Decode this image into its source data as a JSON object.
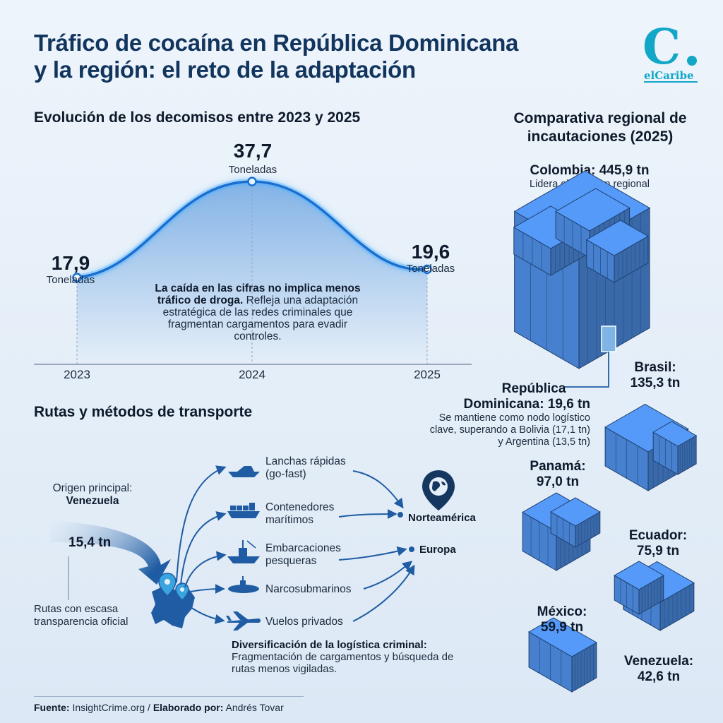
{
  "header": {
    "title_line1": "Tráfico de cocaína en República Dominicana",
    "title_line2": "y la región: el reto de la adaptación"
  },
  "logo": {
    "mark": "C",
    "text": "elCaribe",
    "color": "#12a7c7"
  },
  "evolution": {
    "title": "Evolución de los decomisos entre 2023 y 2025",
    "unit": "Toneladas",
    "labels": [
      "17,9",
      "37,7",
      "19,6"
    ],
    "note_bold": "La caída en las cifras no implica menos tráfico de droga.",
    "note_rest": "Refleja una adaptación estratégica de las redes criminales que fragmentan cargamentos para evadir controles."
  },
  "chart_data": [
    {
      "type": "line",
      "title": "Evolución de los decomisos entre 2023 y 2025",
      "x": [
        "2023",
        "2024",
        "2025"
      ],
      "values": [
        17.9,
        37.7,
        19.6
      ],
      "unit": "Toneladas",
      "color": "#1a7fe0"
    },
    {
      "type": "bar",
      "title": "Comparativa regional de incautaciones (2025)",
      "categories": [
        "Colombia",
        "Brasil",
        "Panamá",
        "Ecuador",
        "México",
        "Venezuela",
        "República Dominicana",
        "Bolivia",
        "Argentina"
      ],
      "values": [
        445.9,
        135.3,
        97.0,
        75.9,
        59.9,
        42.6,
        19.6,
        17.1,
        13.5
      ],
      "unit": "tn"
    }
  ],
  "routes": {
    "title": "Rutas y métodos de transporte",
    "origin_label": "Origen principal:",
    "origin_country": "Venezuela",
    "origin_amount": "15,4 tn",
    "transparency": "Rutas con escasa transparencia oficial",
    "methods": [
      {
        "label": "Lanchas rápidas (go-fast)",
        "icon": "speedboat-icon"
      },
      {
        "label": "Contenedores marítimos",
        "icon": "cargo-ship-icon"
      },
      {
        "label": "Embarcaciones pesqueras",
        "icon": "fishing-boat-icon"
      },
      {
        "label": "Narcosubmarinos",
        "icon": "submarine-icon"
      },
      {
        "label": "Vuelos privados",
        "icon": "airplane-icon"
      }
    ],
    "destinations": [
      "Norteamérica",
      "Europa"
    ],
    "diversification_bold": "Diversificación de la logística criminal:",
    "diversification_rest": "Fragmentación de cargamentos y búsqueda de rutas menos vigiladas."
  },
  "regional": {
    "title_line1": "Comparativa regional de",
    "title_line2": "incautaciones (2025)",
    "colombia_name": "Colombia: 445,9 tn",
    "colombia_note": "Lidera el volumen regional",
    "rd_name_line1": "República",
    "rd_name_line2": "Dominicana: 19,6 tn",
    "rd_note_line1": "Se mantiene como nodo logístico",
    "rd_note_line2": "clave, superando a Bolivia (17,1 tn)",
    "rd_note_line3": "y Argentina (13,5 tn)",
    "brasil_line1": "Brasil:",
    "brasil_line2": "135,3 tn",
    "panama_line1": "Panamá:",
    "panama_line2": "97,0 tn",
    "ecuador_line1": "Ecuador:",
    "ecuador_line2": "75,9 tn",
    "mexico_line1": "México:",
    "mexico_line2": "59,9 tn",
    "venezuela_line1": "Venezuela:",
    "venezuela_line2": "42,6 tn",
    "container_color": "#3f72b8"
  },
  "footer": {
    "source_label": "Fuente:",
    "source": "InsightCrime.org",
    "separator": "/",
    "author_label": "Elaborado por:",
    "author": "Andrés Tovar"
  }
}
